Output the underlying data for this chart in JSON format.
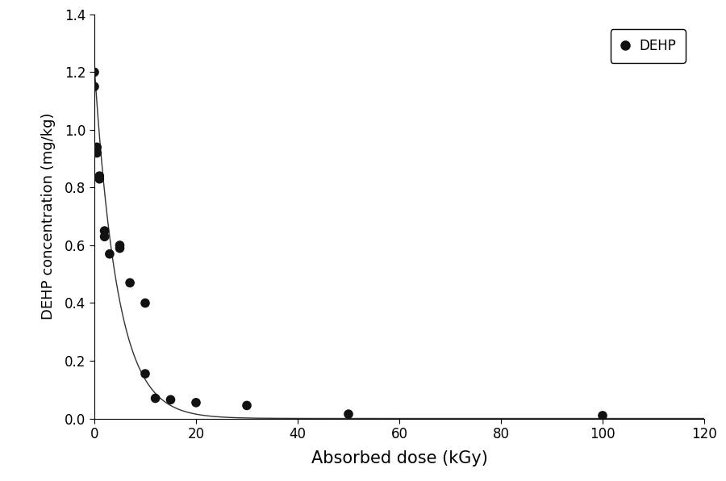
{
  "scatter_x": [
    0,
    0,
    0.5,
    0.5,
    1,
    1,
    2,
    2,
    3,
    5,
    5,
    7,
    10,
    10,
    12,
    15,
    20,
    30,
    50,
    100
  ],
  "scatter_y": [
    1.2,
    1.15,
    0.94,
    0.92,
    0.84,
    0.83,
    0.65,
    0.63,
    0.57,
    0.6,
    0.59,
    0.47,
    0.4,
    0.155,
    0.07,
    0.065,
    0.055,
    0.045,
    0.015,
    0.01
  ],
  "curve_A": 1.22,
  "curve_k": 0.22,
  "xlabel": "Absorbed dose (kGy)",
  "ylabel": "DEHP concentration (mg/kg)",
  "xlim": [
    0,
    120
  ],
  "ylim": [
    0,
    1.4
  ],
  "xticks": [
    0,
    20,
    40,
    60,
    80,
    100,
    120
  ],
  "yticks": [
    0.0,
    0.2,
    0.4,
    0.6,
    0.8,
    1.0,
    1.2,
    1.4
  ],
  "legend_label": "DEHP",
  "marker_color": "#111111",
  "curve_color": "#333333",
  "marker_size": 8,
  "bg_color": "#ffffff",
  "xlabel_fontsize": 15,
  "ylabel_fontsize": 13,
  "tick_fontsize": 12
}
